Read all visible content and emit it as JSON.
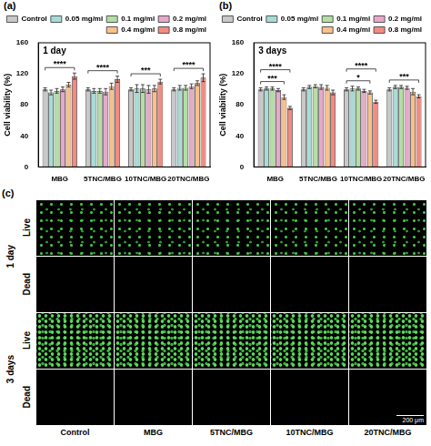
{
  "chart_data": [
    {
      "type": "bar",
      "panel": "(a)",
      "title": "1 day",
      "y_label": "Cell viability (%)",
      "categories": [
        "MBG",
        "5TNC/MBG",
        "10TNC/MBG",
        "20TNC/MBG"
      ],
      "series": [
        {
          "name": "Control",
          "color": "#c8c8c8",
          "values": [
            100,
            100,
            100,
            100
          ],
          "errors": [
            2,
            2,
            2,
            2
          ]
        },
        {
          "name": "0.05 mg/ml",
          "color": "#a6dcd6",
          "values": [
            96,
            98,
            101,
            102
          ],
          "errors": [
            3,
            3,
            5,
            3
          ]
        },
        {
          "name": "0.1 mg/ml",
          "color": "#b4dea4",
          "values": [
            98,
            98,
            101,
            102
          ],
          "errors": [
            3,
            3,
            5,
            3
          ]
        },
        {
          "name": "0.2 mg/ml",
          "color": "#e6a9c9",
          "values": [
            100,
            97,
            100,
            104
          ],
          "errors": [
            3,
            4,
            5,
            3
          ]
        },
        {
          "name": "0.4 mg/ml",
          "color": "#f7c08c",
          "values": [
            106,
            104,
            101,
            108
          ],
          "errors": [
            3,
            4,
            4,
            3
          ]
        },
        {
          "name": "0.8 mg/ml",
          "color": "#f28b82",
          "values": [
            117,
            113,
            110,
            115
          ],
          "errors": [
            4,
            4,
            3,
            5
          ]
        }
      ],
      "significance": [
        {
          "category": "MBG",
          "from": "Control",
          "to": "0.8 mg/ml",
          "label": "****"
        },
        {
          "category": "5TNC/MBG",
          "from": "Control",
          "to": "0.8 mg/ml",
          "label": "****"
        },
        {
          "category": "10TNC/MBG",
          "from": "Control",
          "to": "0.8 mg/ml",
          "label": "***"
        },
        {
          "category": "20TNC/MBG",
          "from": "Control",
          "to": "0.8 mg/ml",
          "label": "****"
        }
      ],
      "ylim": [
        0,
        160
      ],
      "yticks": [
        0,
        40,
        80,
        120,
        160
      ],
      "grid": false,
      "legend": "top"
    },
    {
      "type": "bar",
      "panel": "(b)",
      "title": "3 days",
      "y_label": "Cell viability (%)",
      "categories": [
        "MBG",
        "5TNC/MBG",
        "10TNC/MBG",
        "20TNC/MBG"
      ],
      "series": [
        {
          "name": "Control",
          "color": "#c8c8c8",
          "values": [
            100,
            100,
            100,
            100
          ],
          "errors": [
            2,
            2,
            2,
            2
          ]
        },
        {
          "name": "0.05 mg/ml",
          "color": "#a6dcd6",
          "values": [
            101,
            103,
            101,
            103
          ],
          "errors": [
            2,
            2,
            3,
            2
          ]
        },
        {
          "name": "0.1 mg/ml",
          "color": "#b4dea4",
          "values": [
            101,
            104,
            101,
            103
          ],
          "errors": [
            2,
            2,
            2,
            2
          ]
        },
        {
          "name": "0.2 mg/ml",
          "color": "#e6a9c9",
          "values": [
            99,
            103,
            98,
            102
          ],
          "errors": [
            2,
            3,
            2,
            2
          ]
        },
        {
          "name": "0.4 mg/ml",
          "color": "#f7c08c",
          "values": [
            90,
            102,
            96,
            97
          ],
          "errors": [
            3,
            3,
            2,
            4
          ]
        },
        {
          "name": "0.8 mg/ml",
          "color": "#f28b82",
          "values": [
            76,
            96,
            84,
            91
          ],
          "errors": [
            2,
            3,
            2,
            2
          ]
        }
      ],
      "significance": [
        {
          "category": "MBG",
          "from": "Control",
          "to": "0.8 mg/ml",
          "label": "****"
        },
        {
          "category": "MBG",
          "from": "Control",
          "to": "0.4 mg/ml",
          "label": "***"
        },
        {
          "category": "10TNC/MBG",
          "from": "Control",
          "to": "0.8 mg/ml",
          "label": "****"
        },
        {
          "category": "10TNC/MBG",
          "from": "Control",
          "to": "0.4 mg/ml",
          "label": "*"
        },
        {
          "category": "20TNC/MBG",
          "from": "Control",
          "to": "0.8 mg/ml",
          "label": "***"
        }
      ],
      "ylim": [
        0,
        160
      ],
      "yticks": [
        0,
        40,
        80,
        120,
        160
      ],
      "grid": false,
      "legend": "top"
    }
  ],
  "panel_c": {
    "panel": "(c)",
    "rows": [
      {
        "time": "1 day",
        "stains": [
          "Live",
          "Dead"
        ]
      },
      {
        "time": "3 days",
        "stains": [
          "Live",
          "Dead"
        ]
      }
    ],
    "columns": [
      "Control",
      "MBG",
      "5TNC/MBG",
      "10TNC/MBG",
      "20TNC/MBG"
    ],
    "scale_bar": "200 μm"
  }
}
